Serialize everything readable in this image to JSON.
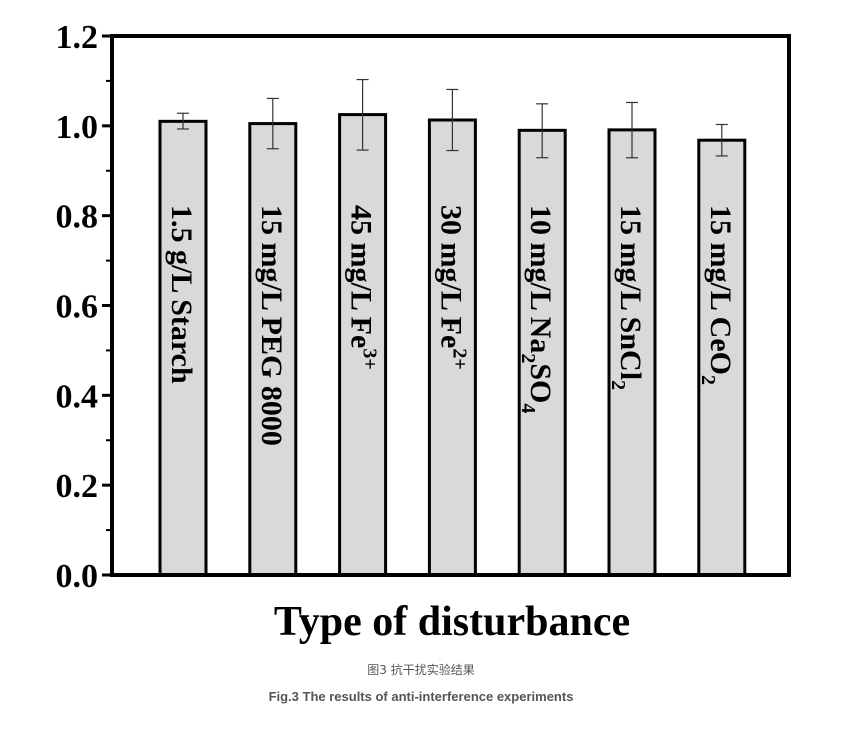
{
  "chart_data": {
    "type": "bar",
    "orientation": "vertical",
    "xlabel": "Type of disturbance",
    "ylabel": "",
    "ylim": [
      0.0,
      1.2
    ],
    "y_ticks": [
      "0.0",
      "0.2",
      "0.4",
      "0.6",
      "0.8",
      "1.0",
      "1.2"
    ],
    "grid": false,
    "legend": "none",
    "bar_color": "#d9d9d9",
    "edge_color": "#000000",
    "categories": [
      {
        "text": "1.5 g/L Starch",
        "sup": "",
        "sub": "",
        "tail": ""
      },
      {
        "text": "15 mg/L PEG 8000",
        "sup": "",
        "sub": "",
        "tail": ""
      },
      {
        "text": "45 mg/L Fe",
        "sup": "3+",
        "sub": "",
        "tail": ""
      },
      {
        "text": "30 mg/L Fe",
        "sup": "2+",
        "sub": "",
        "tail": ""
      },
      {
        "text": "10 mg/L Na",
        "sup": "",
        "sub": "2",
        "tail": "SO",
        "sub2": "4"
      },
      {
        "text": "15 mg/L SnCl",
        "sup": "",
        "sub": "2",
        "tail": ""
      },
      {
        "text": "15 mg/L CeO",
        "sup": "",
        "sub": "2",
        "tail": ""
      }
    ],
    "values": [
      1.01,
      1.005,
      1.025,
      1.013,
      0.99,
      0.991,
      0.968
    ],
    "error_high": [
      1.028,
      1.061,
      1.103,
      1.081,
      1.049,
      1.052,
      1.003
    ],
    "error_low": [
      0.993,
      0.949,
      0.946,
      0.945,
      0.929,
      0.929,
      0.933
    ]
  },
  "captions": {
    "cn": "图3 抗干扰实验结果",
    "en": "Fig.3 The results of anti-interference experiments"
  }
}
